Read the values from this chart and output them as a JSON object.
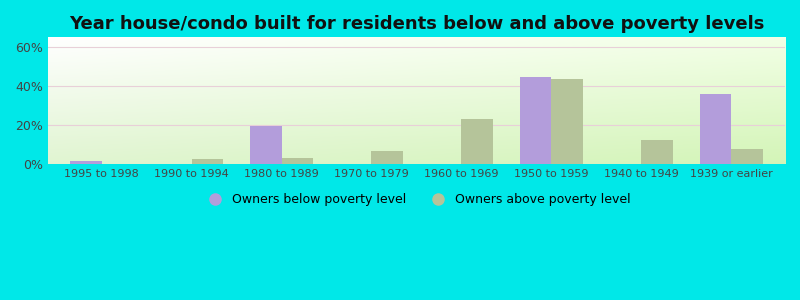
{
  "title": "Year house/condo built for residents below and above poverty levels",
  "categories": [
    "1995 to 1998",
    "1990 to 1994",
    "1980 to 1989",
    "1970 to 1979",
    "1960 to 1969",
    "1950 to 1959",
    "1940 to 1949",
    "1939 or earlier"
  ],
  "below_poverty": [
    1.5,
    0,
    19.5,
    0,
    0,
    44.5,
    0,
    36.0
  ],
  "above_poverty": [
    0,
    2.5,
    3.0,
    7.0,
    23.0,
    43.5,
    12.5,
    8.0
  ],
  "below_color": "#b39ddb",
  "above_color": "#b5c49a",
  "outer_background": "#00e8e8",
  "ylim": [
    0,
    65
  ],
  "yticks": [
    0,
    20,
    40,
    60
  ],
  "ytick_labels": [
    "0%",
    "20%",
    "40%",
    "60%"
  ],
  "legend_below": "Owners below poverty level",
  "legend_above": "Owners above poverty level",
  "bar_width": 0.35,
  "title_fontsize": 13
}
